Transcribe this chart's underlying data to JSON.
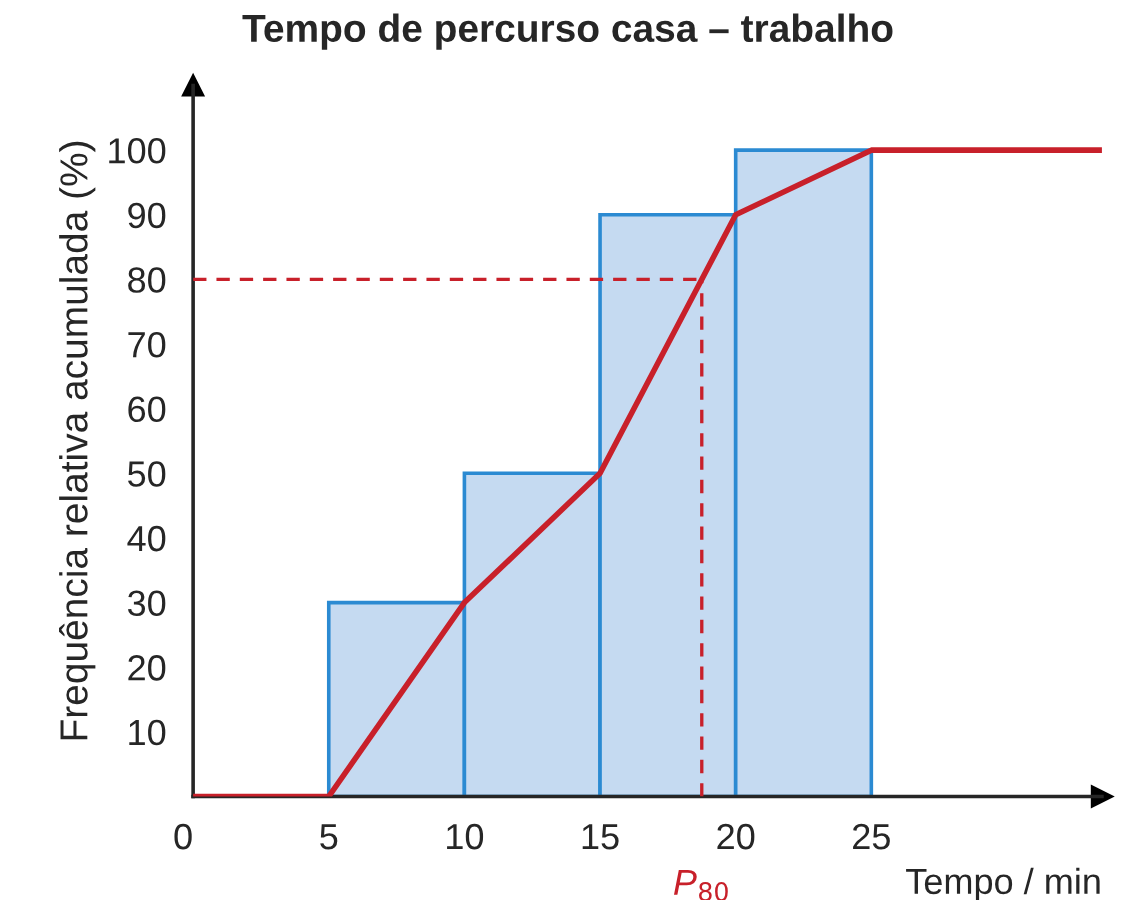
{
  "chart_data": {
    "type": "histogram",
    "title": "Tempo de percurso casa – trabalho",
    "xlabel": "Tempo / min",
    "ylabel": "Frequência relativa acumulada (%)",
    "bins": [
      5,
      10,
      15,
      20,
      25
    ],
    "values": [
      30,
      50,
      90,
      100
    ],
    "color": "#c5daf1",
    "series": [
      {
        "type": "line",
        "color": "#c8202a",
        "x": [
          0,
          5,
          10,
          15,
          20,
          25,
          33.5
        ],
        "values": [
          0,
          0,
          30,
          50,
          90,
          100,
          100
        ]
      }
    ],
    "ref_lines": [
      {
        "axis": "y",
        "value": 80,
        "color": "#c8202a",
        "line_style": "dashed"
      },
      {
        "axis": "x",
        "value": 18.75,
        "label": "P$_{80}$",
        "color": "#c8202a",
        "line_style": "dashed"
      }
    ],
    "xlim": [
      0,
      33.5
    ],
    "ylim": [
      0,
      110
    ],
    "xticks": [
      0,
      5,
      10,
      15,
      20,
      25
    ],
    "yticks": [
      10,
      20,
      30,
      40,
      50,
      60,
      70,
      80,
      90,
      100
    ],
    "grid": false,
    "legend": false
  }
}
